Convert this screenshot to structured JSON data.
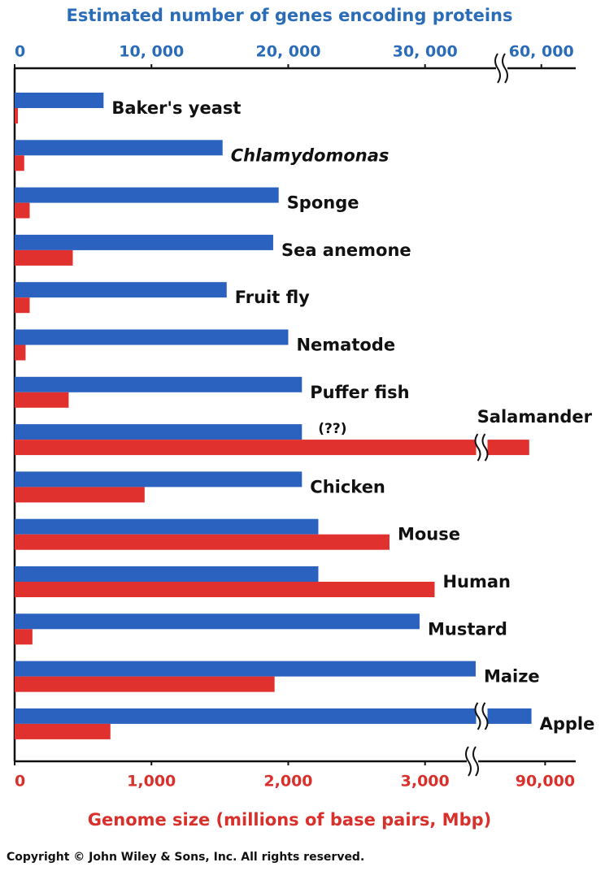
{
  "chart_data": {
    "type": "bar",
    "categories": [
      "Baker's yeast",
      "Chlamydomonas",
      "Sponge",
      "Sea anemone",
      "Fruit fly",
      "Nematode",
      "Puffer fish",
      "Salamander",
      "Chicken",
      "Mouse",
      "Human",
      "Mustard",
      "Maize",
      "Apple"
    ],
    "italic_categories": [
      "Chlamydomonas"
    ],
    "x_top": {
      "title": "Estimated number of genes encoding proteins",
      "color": "#2b6cb8",
      "xlim": [
        0,
        62000
      ],
      "axis_break": [
        34000,
        55000
      ],
      "xticks": [
        0,
        {
          "value": 10000,
          "label": "10, 000"
        },
        {
          "value": 20000,
          "label": "20, 000"
        },
        {
          "value": 30000,
          "label": "30, 000"
        },
        {
          "value": 60000,
          "label": "60, 000"
        }
      ]
    },
    "x_bottom": {
      "title": "Genome size (millions of base pairs, Mbp)",
      "color": "#d9302c",
      "xlim": [
        0,
        93000
      ],
      "axis_break": [
        3400,
        80000
      ],
      "xticks": [
        0,
        {
          "value": 1000,
          "label": "1,000"
        },
        {
          "value": 2000,
          "label": "2,000"
        },
        {
          "value": 3000,
          "label": "3,000"
        },
        {
          "value": 90000,
          "label": "90,000"
        }
      ]
    },
    "series": [
      {
        "axis": "x_top",
        "color": "#2b62c0",
        "values": [
          6500,
          15200,
          19300,
          18900,
          15500,
          20000,
          21000,
          21000,
          21000,
          22200,
          22200,
          29600,
          33700,
          59000
        ]
      },
      {
        "axis": "x_bottom",
        "color": "#e0312e",
        "values": [
          24,
          70,
          110,
          425,
          110,
          80,
          395,
          87000,
          950,
          2740,
          3070,
          130,
          1900,
          700
        ]
      }
    ],
    "annotations": [
      {
        "category": "Salamander",
        "text": "(??)"
      }
    ],
    "footer": "Copyright © John Wiley & Sons, Inc. All rights reserved."
  }
}
